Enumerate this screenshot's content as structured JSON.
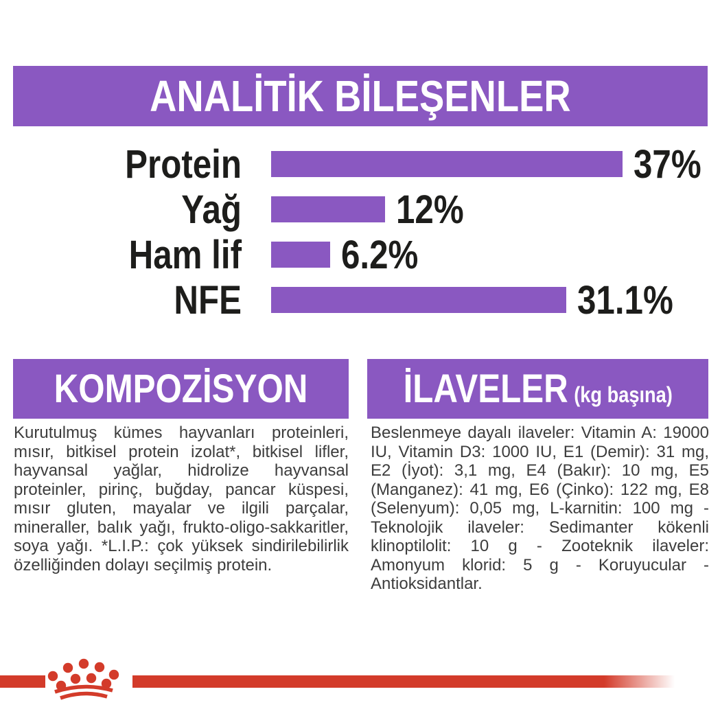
{
  "colors": {
    "purple": "#8a58c1",
    "red": "#d33b2a",
    "heading_text": "#ffffff",
    "chart_text": "#1d1d1b",
    "body_text": "#3d3d3d"
  },
  "header": {
    "title": "ANALİTİK BİLEŞENLER"
  },
  "chart_data": {
    "type": "bar",
    "orientation": "horizontal",
    "title": "ANALİTİK BİLEŞENLER",
    "categories": [
      "Protein",
      "Yağ",
      "Ham lif",
      "NFE"
    ],
    "values": [
      37,
      12,
      6.2,
      31.1
    ],
    "value_labels": [
      "37%",
      "12%",
      "6.2%",
      "31.1%"
    ],
    "unit": "%",
    "xlim": [
      0,
      37
    ],
    "bar_color": "#8a58c1",
    "grid": false,
    "legend": false,
    "value_label_position": "right-of-bar"
  },
  "sections": {
    "composition": {
      "title": "KOMPOZİSYON",
      "body": "Kurutulmuş kümes hayvanları proteinleri, mısır, bitkisel protein izolat*, bitkisel lifler, hayvansal yağlar, hidrolize hayvansal proteinler, pirinç, buğday, pancar küspesi, mısır gluten, mayalar ve ilgili parçalar, mineraller, balık yağı, frukto-oligo-sakkaritler, soya yağı. *L.I.P.: çok yüksek sindirilebilirlik özelliğinden dolayı seçilmiş protein."
    },
    "additives": {
      "title": "İLAVELER",
      "title_note": "(kg başına)",
      "body": "Beslenmeye dayalı ilaveler: Vitamin A: 19000 IU, Vitamin D3: 1000 IU, E1 (Demir): 31 mg, E2 (İyot): 3,1 mg, E4 (Bakır): 10 mg, E5 (Manganez): 41 mg, E6 (Çinko): 122 mg, E8 (Selenyum): 0,05 mg, L-karnitin: 100 mg - Teknolojik ilaveler: Sedimanter kökenli klinoptilolit: 10 g - Zooteknik ilaveler: Amonyum klorid: 5 g - Koruyucular - Antioksidantlar."
    }
  },
  "footer": {
    "brand_logo": "royal-canin-crown-icon"
  }
}
